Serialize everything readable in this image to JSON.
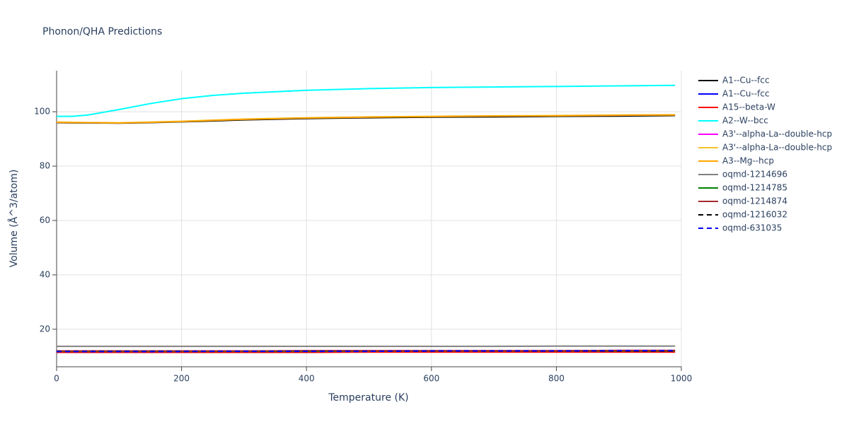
{
  "chart_data": {
    "type": "line",
    "title": "Phonon/QHA Predictions",
    "x_label": "Temperature (K)",
    "y_label": "Volume (Å^3/atom)",
    "x": [
      0,
      25,
      50,
      100,
      150,
      200,
      250,
      300,
      400,
      500,
      600,
      700,
      800,
      900,
      990
    ],
    "xlim": [
      0,
      1000
    ],
    "xticks": [
      0,
      200,
      400,
      600,
      800,
      1000
    ],
    "ylim": [
      6.2,
      115.1
    ],
    "yticks": [
      20,
      40,
      60,
      80,
      100
    ],
    "grid": true,
    "series": [
      {
        "name": "A1--Cu--fcc",
        "color": "#000000",
        "values": [
          96.0,
          95.9,
          95.9,
          95.8,
          96.0,
          96.3,
          96.6,
          97.0,
          97.5,
          97.8,
          98.0,
          98.1,
          98.3,
          98.4,
          98.6
        ]
      },
      {
        "name": "A1--Cu--fcc",
        "color": "#0000ff",
        "values": [
          11.8,
          11.8,
          11.8,
          11.8,
          11.8,
          11.8,
          11.8,
          11.9,
          11.9,
          11.9,
          11.9,
          12.0,
          12.0,
          12.0,
          12.0
        ]
      },
      {
        "name": "A15--beta-W",
        "color": "#ff0000",
        "values": [
          11.5,
          11.5,
          11.5,
          11.5,
          11.5,
          11.5,
          11.5,
          11.5,
          11.5,
          11.6,
          11.6,
          11.6,
          11.6,
          11.6,
          11.6
        ]
      },
      {
        "name": "A2--W--bcc",
        "color": "#00ffff",
        "values": [
          98.3,
          98.3,
          98.8,
          100.8,
          103.0,
          104.8,
          106.0,
          106.8,
          107.9,
          108.5,
          108.9,
          109.1,
          109.3,
          109.5,
          109.7
        ]
      },
      {
        "name": "A3'--alpha-La--double-hcp",
        "color": "#ff00ff",
        "values": [
          12.0,
          12.0,
          12.0,
          12.0,
          12.0,
          12.0,
          12.0,
          12.0,
          12.1,
          12.1,
          12.1,
          12.1,
          12.1,
          12.2,
          12.2
        ]
      },
      {
        "name": "A3'--alpha-La--double-hcp",
        "color": "#f5c02a",
        "values": [
          96.2,
          96.1,
          96.0,
          95.9,
          96.2,
          96.5,
          96.9,
          97.3,
          97.8,
          98.1,
          98.3,
          98.5,
          98.6,
          98.8,
          98.9
        ]
      },
      {
        "name": "A3--Mg--hcp",
        "color": "#ffa500",
        "values": [
          96.1,
          96.0,
          96.0,
          95.9,
          96.1,
          96.4,
          96.8,
          97.2,
          97.7,
          98.0,
          98.2,
          98.4,
          98.5,
          98.7,
          98.8
        ]
      },
      {
        "name": "oqmd-1214696",
        "color": "#808080",
        "values": [
          13.7,
          13.7,
          13.7,
          13.7,
          13.7,
          13.7,
          13.7,
          13.7,
          13.7,
          13.7,
          13.7,
          13.7,
          13.8,
          13.8,
          13.8
        ]
      },
      {
        "name": "oqmd-1214785",
        "color": "#008000",
        "values": [
          11.9,
          11.9,
          11.9,
          11.9,
          11.9,
          11.9,
          11.9,
          11.9,
          11.9,
          12.0,
          12.0,
          12.0,
          12.0,
          12.0,
          12.0
        ]
      },
      {
        "name": "oqmd-1214874",
        "color": "#a52a2a",
        "values": [
          12.0,
          12.0,
          12.0,
          12.0,
          12.0,
          12.0,
          12.0,
          12.0,
          12.1,
          12.1,
          12.1,
          12.1,
          12.1,
          12.2,
          12.2
        ]
      },
      {
        "name": "oqmd-1216032",
        "color": "#000000",
        "dash": "dash",
        "values": [
          11.9,
          11.9,
          11.9,
          11.9,
          11.9,
          11.9,
          11.9,
          11.9,
          11.9,
          11.9,
          12.0,
          12.0,
          12.0,
          12.0,
          12.0
        ]
      },
      {
        "name": "oqmd-631035",
        "color": "#0000ff",
        "dash": "dash",
        "values": [
          11.8,
          11.8,
          11.8,
          11.8,
          11.8,
          11.8,
          11.9,
          11.9,
          11.9,
          11.9,
          12.0,
          12.0,
          12.0,
          12.1,
          12.1
        ]
      }
    ]
  }
}
